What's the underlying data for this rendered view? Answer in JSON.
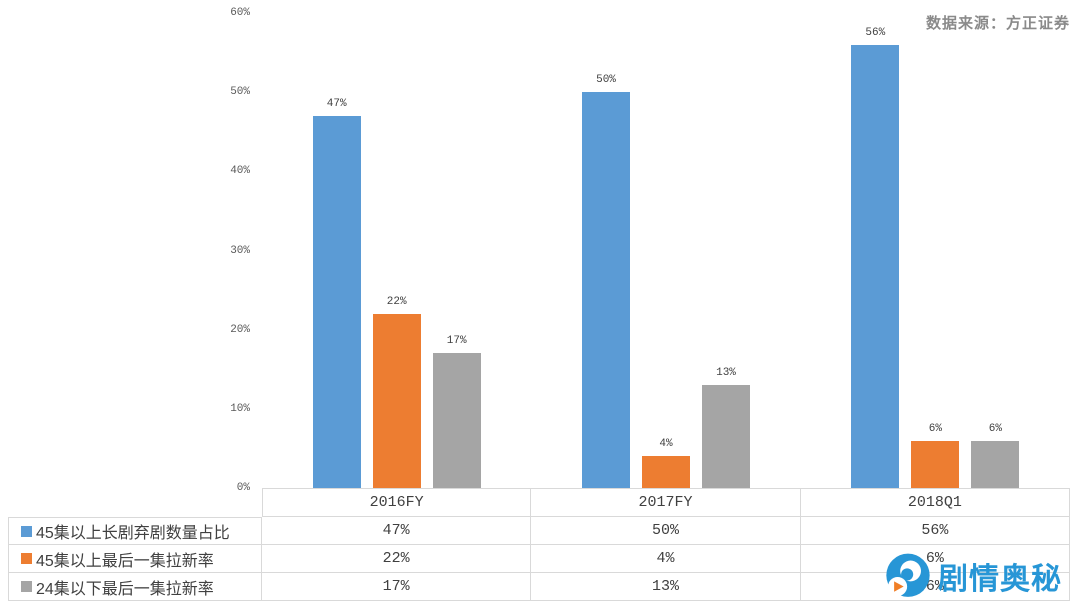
{
  "source_note": "数据来源：方正证券",
  "watermark": {
    "text": "剧情奥秘",
    "icon": "swirl-play-logo",
    "color": "#2796D6",
    "accent_color": "#F07E26"
  },
  "chart_data": {
    "type": "bar",
    "title": "",
    "categories": [
      "2016FY",
      "2017FY",
      "2018Q1"
    ],
    "series": [
      {
        "name": "45集以上长剧弃剧数量占比",
        "color": "#5B9BD5",
        "values": [
          47,
          50,
          56
        ]
      },
      {
        "name": "45集以上最后一集拉新率",
        "color": "#ED7D31",
        "values": [
          22,
          4,
          6
        ]
      },
      {
        "name": "24集以下最后一集拉新率",
        "color": "#A5A5A5",
        "values": [
          17,
          13,
          6
        ]
      }
    ],
    "value_suffix": "%",
    "ylim": [
      0,
      60
    ],
    "yticks": [
      0,
      10,
      20,
      30,
      40,
      50,
      60
    ],
    "grid": false,
    "data_labels": true,
    "legend_position": "data-table-left",
    "data_table": true,
    "border_color": "#D9D9D9"
  }
}
